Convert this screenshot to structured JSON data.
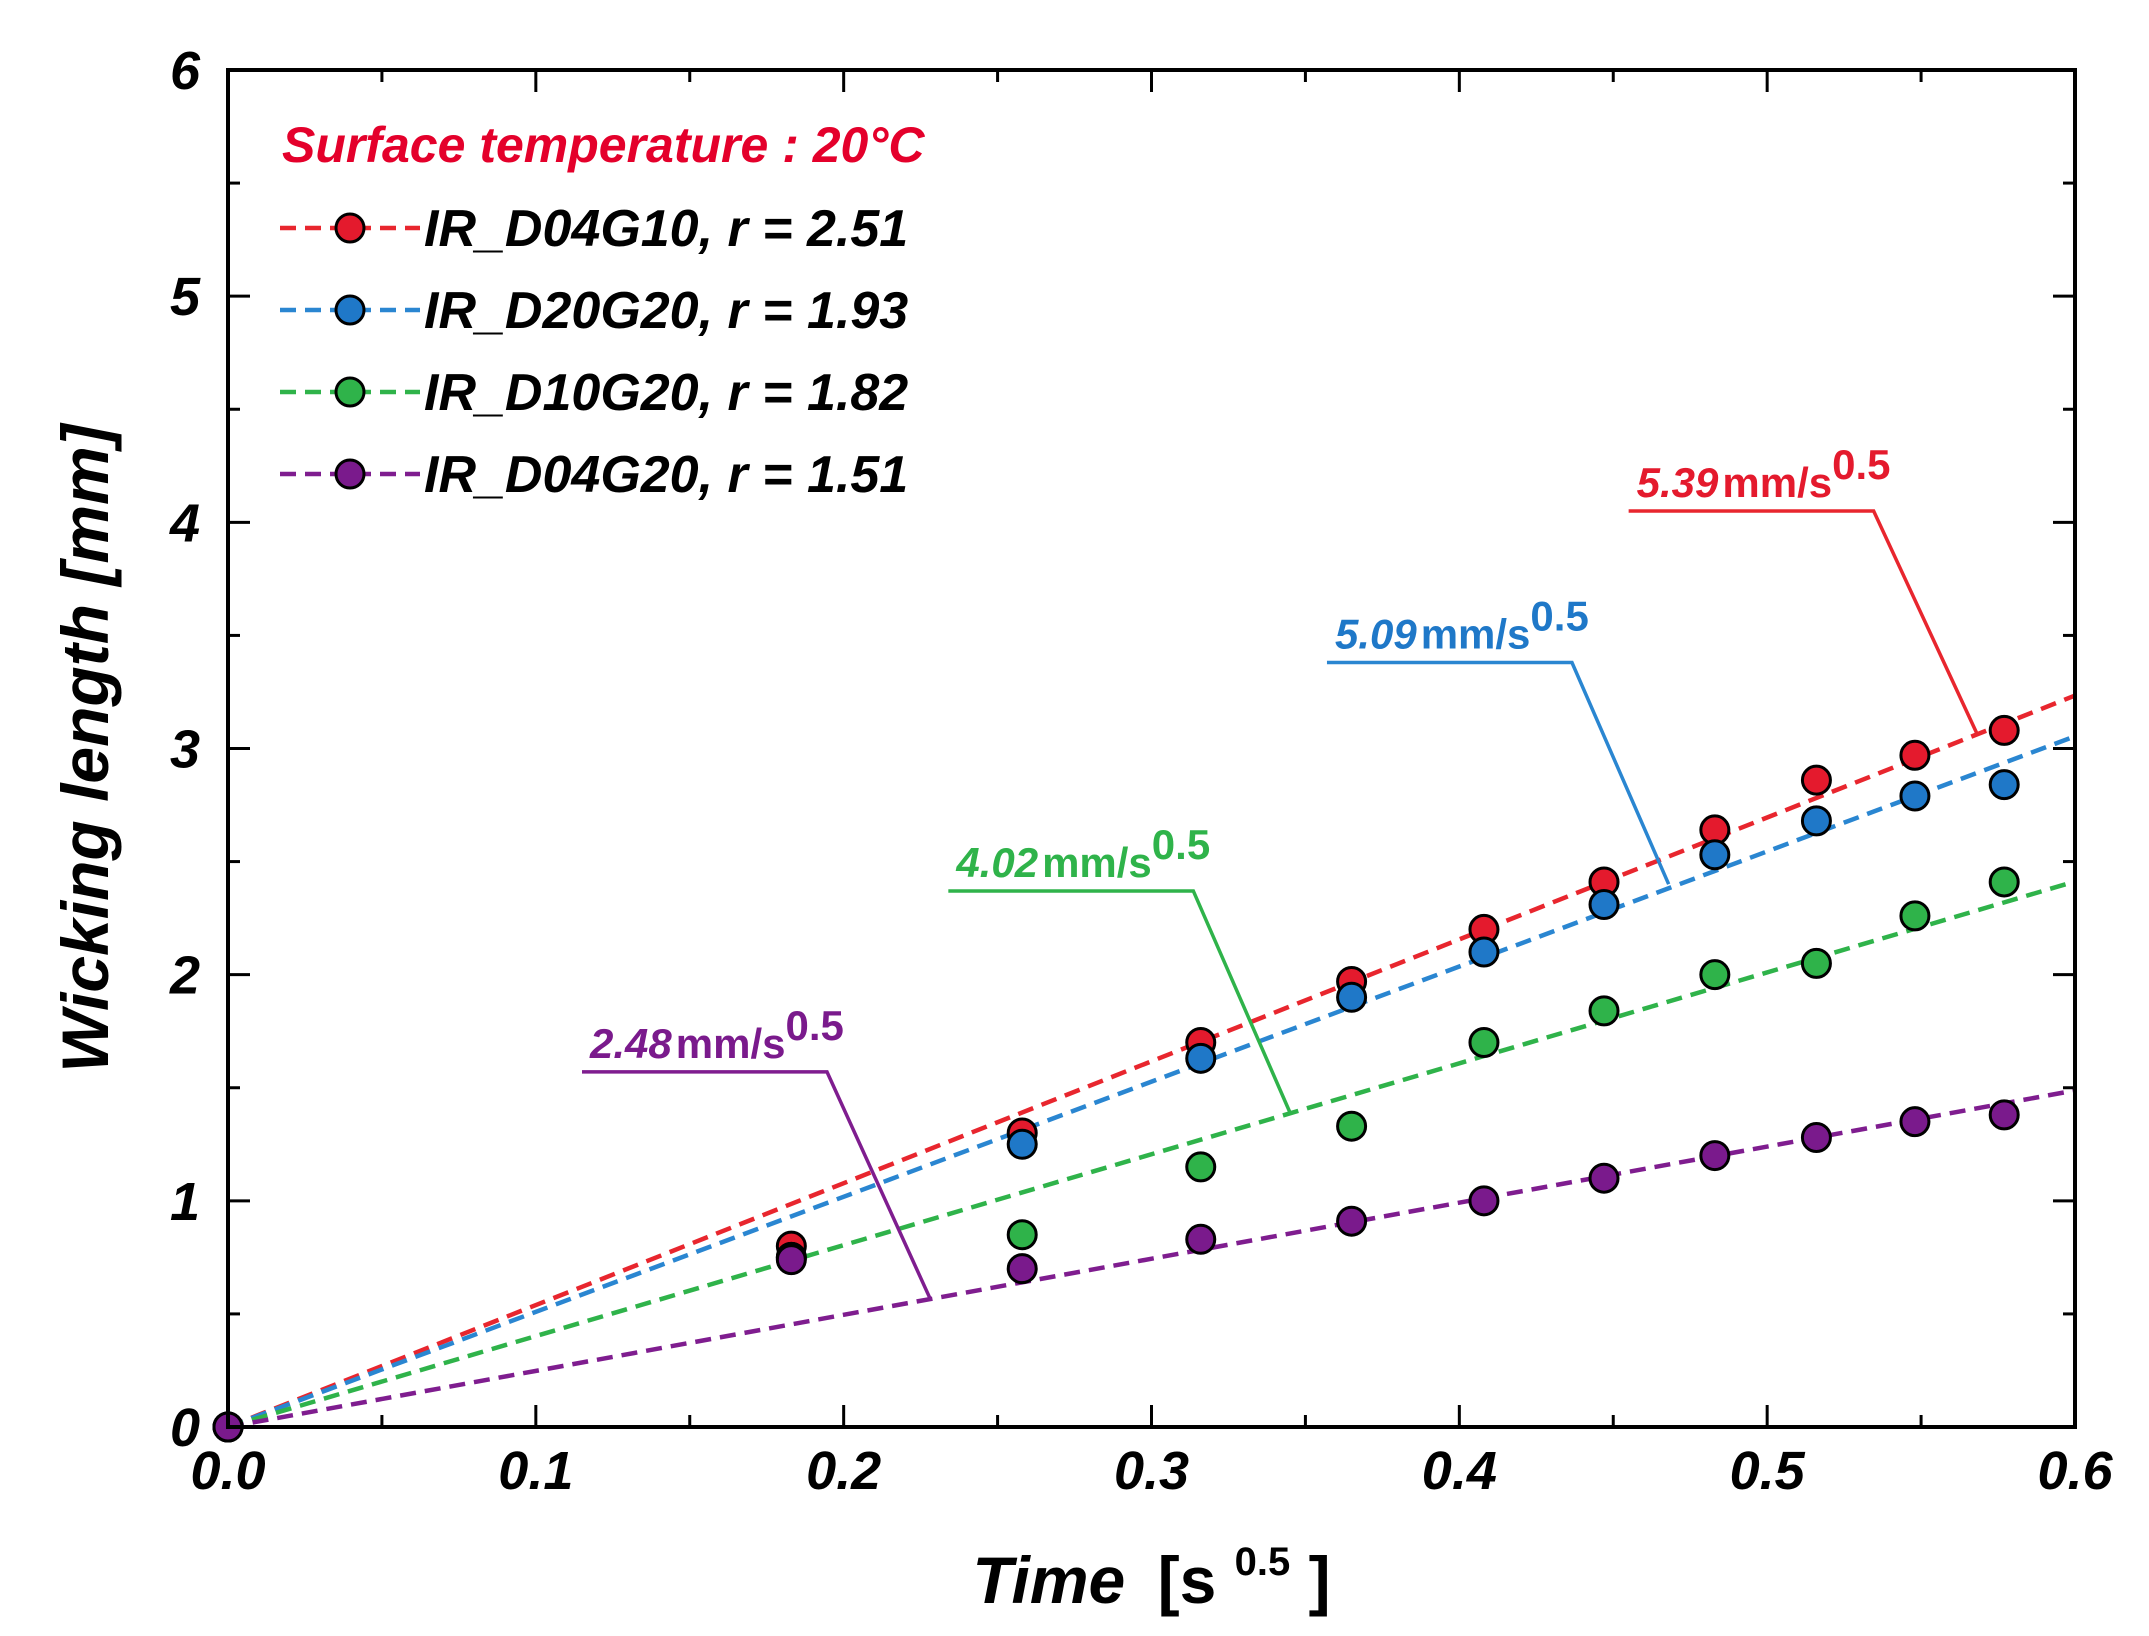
{
  "chart_data": {
    "type": "scatter",
    "xlabel": "Time",
    "xlabel_unit_base": "[s",
    "xlabel_unit_exp": "0.5",
    "xlabel_unit_close": "]",
    "ylabel": "Wicking length [mm]",
    "xlim": [
      0.0,
      0.6
    ],
    "ylim": [
      0,
      6
    ],
    "x_ticks": [
      0.0,
      0.1,
      0.2,
      0.3,
      0.4,
      0.5,
      0.6
    ],
    "x_tick_labels": [
      "0.0",
      "0.1",
      "0.2",
      "0.3",
      "0.4",
      "0.5",
      "0.6"
    ],
    "y_ticks": [
      0,
      1,
      2,
      3,
      4,
      5,
      6
    ],
    "y_tick_labels": [
      "0",
      "1",
      "2",
      "3",
      "4",
      "5",
      "6"
    ],
    "grid": false,
    "legend_position": "top-left",
    "legend_title": "Surface temperature : 20°C",
    "legend_title_color": "#e4002b",
    "series": [
      {
        "name": "IR_D04G10, r = 2.51",
        "color": "#e41a2d",
        "line_color": "#e8262e",
        "slope": 5.39,
        "slope_label_value": "5.39",
        "slope_label_unit": "mm/s",
        "slope_label_exp": "0.5",
        "x": [
          0.0,
          0.183,
          0.258,
          0.316,
          0.365,
          0.408,
          0.447,
          0.483,
          0.516,
          0.548,
          0.577
        ],
        "y": [
          0.0,
          0.8,
          1.3,
          1.7,
          1.97,
          2.2,
          2.41,
          2.64,
          2.86,
          2.97,
          3.08
        ]
      },
      {
        "name": "IR_D20G20, r = 1.93",
        "color": "#1f78c8",
        "line_color": "#2a86d1",
        "slope": 5.09,
        "slope_label_value": "5.09",
        "slope_label_unit": "mm/s",
        "slope_label_exp": "0.5",
        "x": [
          0.0,
          0.183,
          0.258,
          0.316,
          0.365,
          0.408,
          0.447,
          0.483,
          0.516,
          0.548,
          0.577
        ],
        "y": [
          0.0,
          0.75,
          1.25,
          1.63,
          1.9,
          2.1,
          2.31,
          2.53,
          2.68,
          2.79,
          2.84
        ]
      },
      {
        "name": "IR_D10G20, r = 1.82",
        "color": "#2fb34a",
        "line_color": "#2fb34a",
        "slope": 4.02,
        "slope_label_value": "4.02",
        "slope_label_unit": "mm/s",
        "slope_label_exp": "0.5",
        "x": [
          0.0,
          0.183,
          0.258,
          0.316,
          0.365,
          0.408,
          0.447,
          0.483,
          0.516,
          0.548,
          0.577
        ],
        "y": [
          0.0,
          0.75,
          0.85,
          1.15,
          1.33,
          1.7,
          1.84,
          2.0,
          2.05,
          2.26,
          2.41
        ]
      },
      {
        "name": "IR_D04G20, r = 1.51",
        "color": "#7a1a8c",
        "line_color": "#7f1d8f",
        "slope": 2.48,
        "slope_label_value": "2.48",
        "slope_label_unit": "mm/s",
        "slope_label_exp": "0.5",
        "x": [
          0.0,
          0.183,
          0.258,
          0.316,
          0.365,
          0.408,
          0.447,
          0.483,
          0.516,
          0.548,
          0.577
        ],
        "y": [
          0.0,
          0.74,
          0.7,
          0.83,
          0.91,
          1.0,
          1.1,
          1.2,
          1.28,
          1.35,
          1.38
        ]
      }
    ],
    "annotations": [
      {
        "series": 0,
        "label_x": 0.455,
        "label_y": 4.05,
        "tip_x": 0.568,
        "tip_y": 3.07
      },
      {
        "series": 1,
        "label_x": 0.357,
        "label_y": 3.38,
        "tip_x": 0.468,
        "tip_y": 2.4
      },
      {
        "series": 2,
        "label_x": 0.234,
        "label_y": 2.37,
        "tip_x": 0.345,
        "tip_y": 1.39
      },
      {
        "series": 3,
        "label_x": 0.115,
        "label_y": 1.57,
        "tip_x": 0.228,
        "tip_y": 0.57
      }
    ]
  }
}
